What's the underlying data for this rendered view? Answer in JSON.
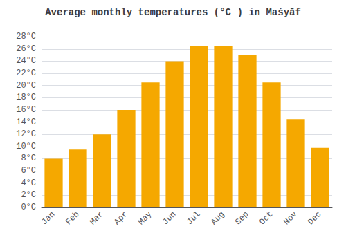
{
  "chart_data": {
    "type": "bar",
    "title": "Average monthly temperatures (°C ) in Maśyāf",
    "categories": [
      "Jan",
      "Feb",
      "Mar",
      "Apr",
      "May",
      "Jun",
      "Jul",
      "Aug",
      "Sep",
      "Oct",
      "Nov",
      "Dec"
    ],
    "values": [
      8.0,
      9.5,
      12.0,
      16.0,
      20.5,
      24.0,
      26.5,
      26.5,
      25.0,
      20.5,
      14.5,
      9.8
    ],
    "color": "#F5A800",
    "ylim": [
      0,
      29.5
    ],
    "yticks": [
      {
        "value": 0,
        "label": "0°C"
      },
      {
        "value": 2,
        "label": "2°C"
      },
      {
        "value": 4,
        "label": "4°C"
      },
      {
        "value": 6,
        "label": "6°C"
      },
      {
        "value": 8,
        "label": "8°C"
      },
      {
        "value": 10,
        "label": "10°C"
      },
      {
        "value": 12,
        "label": "12°C"
      },
      {
        "value": 14,
        "label": "14°C"
      },
      {
        "value": 16,
        "label": "16°C"
      },
      {
        "value": 18,
        "label": "18°C"
      },
      {
        "value": 20,
        "label": "20°C"
      },
      {
        "value": 22,
        "label": "22°C"
      },
      {
        "value": 24,
        "label": "24°C"
      },
      {
        "value": 26,
        "label": "26°C"
      },
      {
        "value": 28,
        "label": "28°C"
      }
    ],
    "grid": true
  }
}
